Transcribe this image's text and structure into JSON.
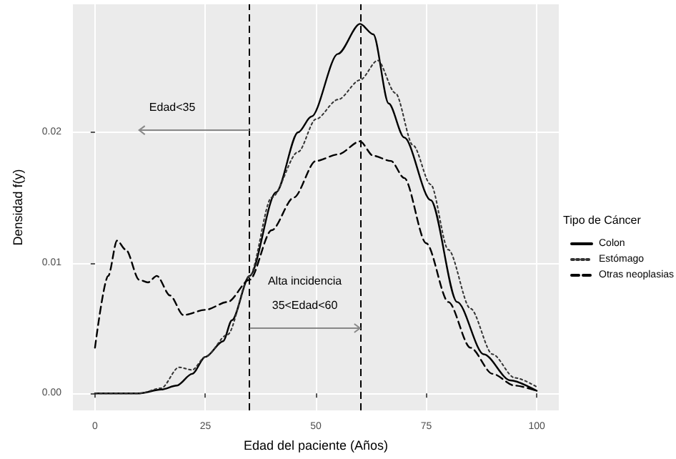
{
  "chart_data": {
    "type": "line",
    "xlabel": "Edad del paciente (Años)",
    "ylabel": "Densidad f(y)",
    "legend_title": "Tipo de Cáncer",
    "legend": "right",
    "grid": true,
    "marker": "none",
    "xlim": [
      -5,
      105
    ],
    "ylim": [
      -0.0013,
      0.0298
    ],
    "xticks": [
      0,
      25,
      50,
      75,
      100
    ],
    "yticks": [
      {
        "value": 0,
        "label": "0.00"
      },
      {
        "value": 0.01,
        "label": "0.01"
      },
      {
        "value": 0.02,
        "label": "0.02"
      }
    ],
    "series": [
      {
        "name": "Colon",
        "color": "#000000",
        "line_style": "solid",
        "x": [
          0,
          10,
          15,
          18.5,
          22,
          25,
          29,
          31,
          35,
          41,
          46,
          49,
          55,
          60,
          63,
          66.5,
          70,
          76,
          82,
          88,
          94,
          100
        ],
        "values": [
          0,
          0,
          0.0003,
          0.0006,
          0.0015,
          0.0028,
          0.004,
          0.0056,
          0.009,
          0.0154,
          0.02,
          0.0212,
          0.026,
          0.0283,
          0.0275,
          0.0222,
          0.0196,
          0.0148,
          0.007,
          0.003,
          0.001,
          0.0002
        ]
      },
      {
        "name": "Estómago",
        "color": "#333333",
        "line_style": "dotted",
        "x": [
          0,
          10,
          15,
          19,
          22,
          25,
          30,
          35,
          40,
          46,
          50,
          55,
          60,
          64,
          68,
          72,
          76,
          80,
          85,
          90,
          95,
          100
        ],
        "values": [
          0,
          0,
          0.0004,
          0.002,
          0.0018,
          0.0028,
          0.0045,
          0.009,
          0.015,
          0.0185,
          0.021,
          0.0225,
          0.024,
          0.0255,
          0.023,
          0.019,
          0.016,
          0.011,
          0.0065,
          0.003,
          0.0012,
          0.0005
        ]
      },
      {
        "name": "Otras neoplasias",
        "color": "#000000",
        "line_style": "dashed",
        "x": [
          0,
          3,
          5,
          7,
          10,
          12,
          14,
          17,
          20,
          25,
          30,
          35,
          40,
          45,
          50,
          55,
          60,
          63,
          67,
          70,
          75,
          80,
          85,
          90,
          95,
          100
        ],
        "values": [
          0.0035,
          0.009,
          0.0117,
          0.011,
          0.0087,
          0.0085,
          0.009,
          0.0075,
          0.006,
          0.0064,
          0.007,
          0.0087,
          0.0125,
          0.015,
          0.0178,
          0.0183,
          0.0193,
          0.0182,
          0.0178,
          0.0165,
          0.0115,
          0.007,
          0.0035,
          0.0015,
          0.0006,
          0.0002
        ]
      }
    ],
    "ref_lines": [
      {
        "axis": "x",
        "value": 35,
        "line_style": "dashed",
        "color": "#000000"
      },
      {
        "axis": "x",
        "value": 60,
        "line_style": "dashed",
        "color": "#000000"
      }
    ],
    "annotations": [
      "Edad<35",
      "Alta incidencia",
      {
        "text": "35<Edad<60",
        "x": 60,
        "y": 0.005
      }
    ]
  }
}
